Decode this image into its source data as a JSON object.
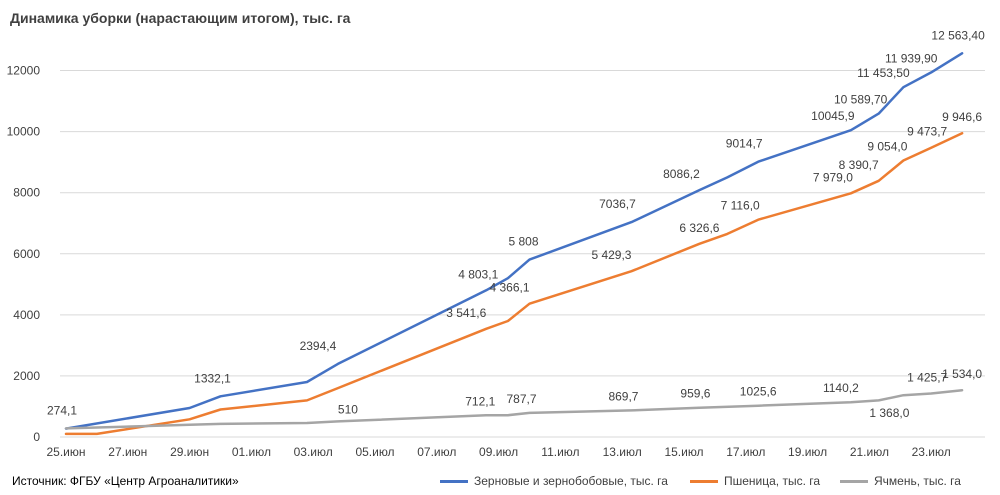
{
  "title": "Динамика уборки (нарастающим итогом), тыс. га",
  "source": "Источник: ФГБУ «Центр Агроаналитики»",
  "chart_data": {
    "type": "line",
    "title": "Динамика уборки (нарастающим итогом), тыс. га",
    "xlabel": "",
    "ylabel": "",
    "ylim": [
      0,
      13000
    ],
    "yticks": [
      0,
      2000,
      4000,
      6000,
      8000,
      10000,
      12000
    ],
    "grid": true,
    "legend_position": "bottom-right",
    "x_tick_labels": [
      "25.июн",
      "27.июн",
      "29.июн",
      "01.июл",
      "03.июл",
      "05.июл",
      "07.июл",
      "09.июл",
      "11.июл",
      "13.июл",
      "15.июл",
      "17.июл",
      "19.июл",
      "21.июл",
      "23.июл"
    ],
    "x_day_range": [
      0,
      29
    ],
    "series": [
      {
        "name": "Зерновые и зернобобовые, тыс. га",
        "color": "#4472C4",
        "points": [
          {
            "day": 0,
            "value": 274.1,
            "label": "274,1"
          },
          {
            "day": 4,
            "value": 950
          },
          {
            "day": 5,
            "value": 1332.1,
            "label": "1332,1"
          },
          {
            "day": 7.8,
            "value": 1800
          },
          {
            "day": 8.8,
            "value": 2394.4,
            "label": "2394,4"
          },
          {
            "day": 13.6,
            "value": 4803.1,
            "label": "4 803,1"
          },
          {
            "day": 14.3,
            "value": 5200
          },
          {
            "day": 15,
            "value": 5808,
            "label": "5 808"
          },
          {
            "day": 18.3,
            "value": 7036.7,
            "label": "7036,7"
          },
          {
            "day": 20.5,
            "value": 8086.2,
            "label": "8086,2"
          },
          {
            "day": 21.4,
            "value": 8500
          },
          {
            "day": 22.4,
            "value": 9014.7,
            "label": "9014,7"
          },
          {
            "day": 25.4,
            "value": 10045.9,
            "label": "10045,9"
          },
          {
            "day": 26.3,
            "value": 10589.7,
            "label": "10 589,70"
          },
          {
            "day": 27.1,
            "value": 11453.5,
            "label": "11 453,50"
          },
          {
            "day": 28,
            "value": 11939.9,
            "label": "11 939,90"
          },
          {
            "day": 29,
            "value": 12563.4,
            "label": "12 563,40"
          }
        ]
      },
      {
        "name": "Пшеница, тыс. га",
        "color": "#ED7D31",
        "points": [
          {
            "day": 0,
            "value": 100
          },
          {
            "day": 1,
            "value": 100
          },
          {
            "day": 4,
            "value": 580
          },
          {
            "day": 5,
            "value": 900
          },
          {
            "day": 7.8,
            "value": 1200
          },
          {
            "day": 8.8,
            "value": 1600
          },
          {
            "day": 13.6,
            "value": 3541.6,
            "label": "3 541,6"
          },
          {
            "day": 14.3,
            "value": 3800
          },
          {
            "day": 15,
            "value": 4366.1,
            "label": "4 366,1"
          },
          {
            "day": 18.3,
            "value": 5429.3,
            "label": "5 429,3"
          },
          {
            "day": 20.5,
            "value": 6326.6,
            "label": "6 326,6"
          },
          {
            "day": 21.4,
            "value": 6650
          },
          {
            "day": 22.4,
            "value": 7116.0,
            "label": "7 116,0"
          },
          {
            "day": 25.4,
            "value": 7979.0,
            "label": "7 979,0"
          },
          {
            "day": 26.3,
            "value": 8390.7,
            "label": "8 390,7"
          },
          {
            "day": 27.1,
            "value": 9054.0,
            "label": "9 054,0"
          },
          {
            "day": 28,
            "value": 9473.7,
            "label": "9 473,7"
          },
          {
            "day": 29,
            "value": 9946.6,
            "label": "9 946,6"
          }
        ]
      },
      {
        "name": "Ячмень, тыс. га",
        "color": "#A5A5A5",
        "points": [
          {
            "day": 0,
            "value": 280
          },
          {
            "day": 4,
            "value": 400
          },
          {
            "day": 5,
            "value": 430
          },
          {
            "day": 7.8,
            "value": 460
          },
          {
            "day": 8.8,
            "value": 510,
            "label": "510"
          },
          {
            "day": 13.6,
            "value": 712.1,
            "label": "712,1"
          },
          {
            "day": 14.3,
            "value": 715
          },
          {
            "day": 15,
            "value": 787.7,
            "label": "787,7"
          },
          {
            "day": 18.3,
            "value": 869.7,
            "label": "869,7"
          },
          {
            "day": 20.5,
            "value": 959.6,
            "label": "959,6"
          },
          {
            "day": 22.4,
            "value": 1025.6,
            "label": "1025,6"
          },
          {
            "day": 25.4,
            "value": 1140.2,
            "label": "1140,2"
          },
          {
            "day": 26.3,
            "value": 1200
          },
          {
            "day": 27.1,
            "value": 1368.0,
            "label": "1 368,0"
          },
          {
            "day": 28,
            "value": 1425.7,
            "label": "1 425,7"
          },
          {
            "day": 29,
            "value": 1534.0,
            "label": "1 534,0"
          }
        ]
      }
    ]
  }
}
